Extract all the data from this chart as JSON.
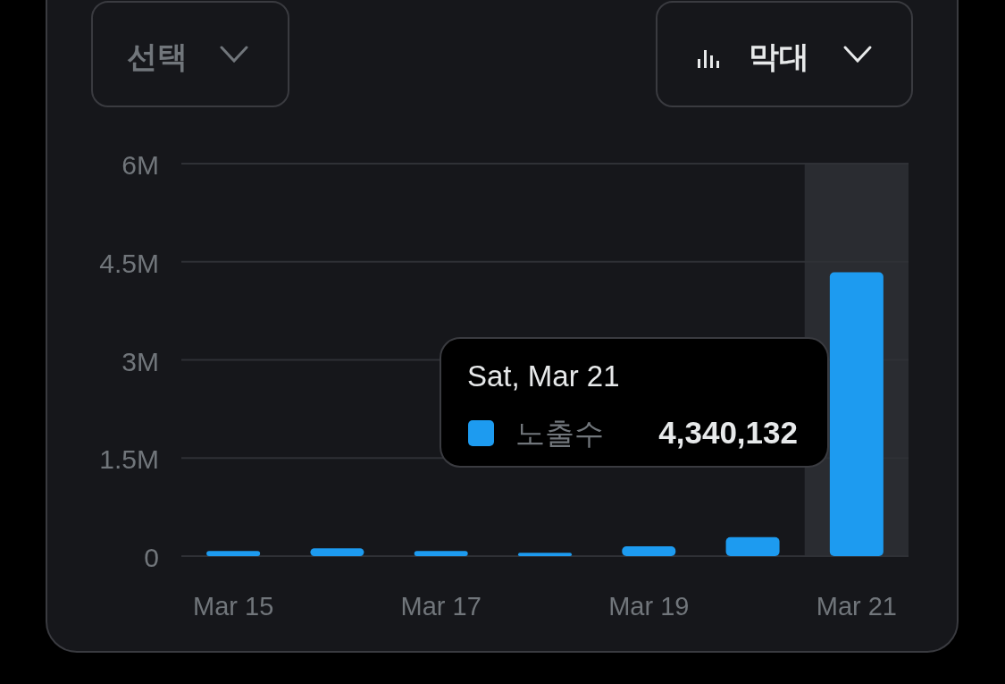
{
  "chart_data": {
    "type": "bar",
    "categories": [
      "Mar 15",
      null,
      "Mar 17",
      null,
      "Mar 19",
      null,
      "Mar 21"
    ],
    "series": [
      {
        "name": "노출수",
        "color": "#1d9bf0",
        "values": [
          80000,
          120000,
          80000,
          50000,
          150000,
          290000,
          4340132
        ]
      }
    ],
    "ylim": [
      0,
      6000000
    ],
    "yticks": [
      0,
      {
        "value": 1500000,
        "label": "1.5M"
      },
      {
        "value": 3000000,
        "label": "3M"
      },
      {
        "value": 4500000,
        "label": "4.5M"
      },
      {
        "value": 6000000,
        "label": "6M"
      }
    ],
    "grid": "y",
    "bands": [
      {
        "axis": "x",
        "from": "Mar 21",
        "to": "Mar 21",
        "color": "#2a2c31"
      }
    ],
    "annotations": [
      "선택",
      "막대",
      "Sat, Mar 21",
      "4,340,132"
    ]
  }
}
